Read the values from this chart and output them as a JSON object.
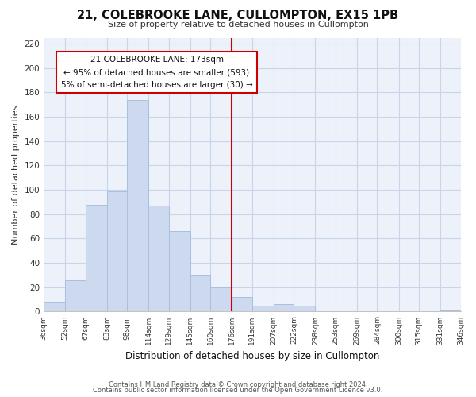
{
  "title": "21, COLEBROOKE LANE, CULLOMPTON, EX15 1PB",
  "subtitle": "Size of property relative to detached houses in Cullompton",
  "xlabel": "Distribution of detached houses by size in Cullompton",
  "ylabel": "Number of detached properties",
  "footer1": "Contains HM Land Registry data © Crown copyright and database right 2024.",
  "footer2": "Contains public sector information licensed under the Open Government Licence v3.0.",
  "bin_labels": [
    "36sqm",
    "52sqm",
    "67sqm",
    "83sqm",
    "98sqm",
    "114sqm",
    "129sqm",
    "145sqm",
    "160sqm",
    "176sqm",
    "191sqm",
    "207sqm",
    "222sqm",
    "238sqm",
    "253sqm",
    "269sqm",
    "284sqm",
    "300sqm",
    "315sqm",
    "331sqm",
    "346sqm"
  ],
  "bar_values": [
    8,
    26,
    88,
    99,
    174,
    87,
    66,
    30,
    20,
    12,
    5,
    6,
    5,
    0,
    0,
    0,
    0,
    0,
    0,
    1
  ],
  "bar_color": "#ccd9ee",
  "bar_edge_color": "#a8c0de",
  "vline_x": 176,
  "vline_color": "#cc0000",
  "annotation_title": "21 COLEBROOKE LANE: 173sqm",
  "annotation_line1": "← 95% of detached houses are smaller (593)",
  "annotation_line2": "5% of semi-detached houses are larger (30) →",
  "annotation_box_color": "#ffffff",
  "annotation_box_edge": "#cc0000",
  "ylim": [
    0,
    225
  ],
  "yticks": [
    0,
    20,
    40,
    60,
    80,
    100,
    120,
    140,
    160,
    180,
    200,
    220
  ],
  "bin_edges": [
    36,
    52,
    67,
    83,
    98,
    114,
    129,
    145,
    160,
    176,
    191,
    207,
    222,
    238,
    253,
    269,
    284,
    300,
    315,
    331,
    346
  ],
  "plot_bg_color": "#edf2fa",
  "background_color": "#ffffff",
  "grid_color": "#c8d4e8"
}
